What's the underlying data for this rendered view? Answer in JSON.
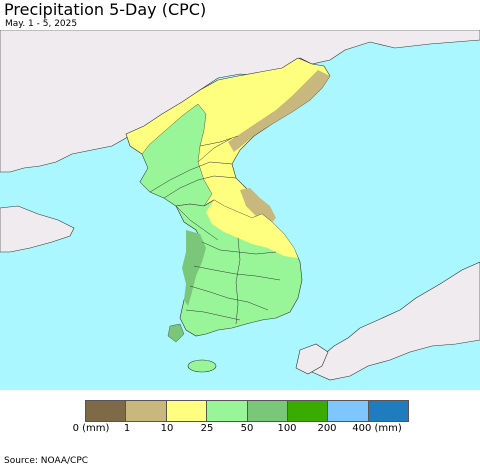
{
  "header": {
    "title": "Precipitation 5-Day (CPC)",
    "date_range": "May. 1 - 5, 2025"
  },
  "map": {
    "colors": {
      "sea": "#aaf7ff",
      "land_outside": "#efebef",
      "yellow": "#ffff7f",
      "tan": "#c8b87e",
      "light_green": "#98f598",
      "mid_green": "#7ac77a",
      "border": "#333333"
    }
  },
  "legend": {
    "swatches": [
      {
        "color": "#7f6a48",
        "range": "0-1"
      },
      {
        "color": "#c8b87e",
        "range": "1-10"
      },
      {
        "color": "#ffff7f",
        "range": "10-25"
      },
      {
        "color": "#98f598",
        "range": "25-50"
      },
      {
        "color": "#7ac77a",
        "range": "50-100"
      },
      {
        "color": "#3aac00",
        "range": "100-200"
      },
      {
        "color": "#7fc6ff",
        "range": "200-400"
      },
      {
        "color": "#1f7cbe",
        "range": "400+"
      }
    ],
    "labels": [
      "0 (mm)",
      "1",
      "10",
      "25",
      "50",
      "100",
      "200",
      "400 (mm)"
    ]
  },
  "footer": {
    "source": "Source: NOAA/CPC"
  }
}
